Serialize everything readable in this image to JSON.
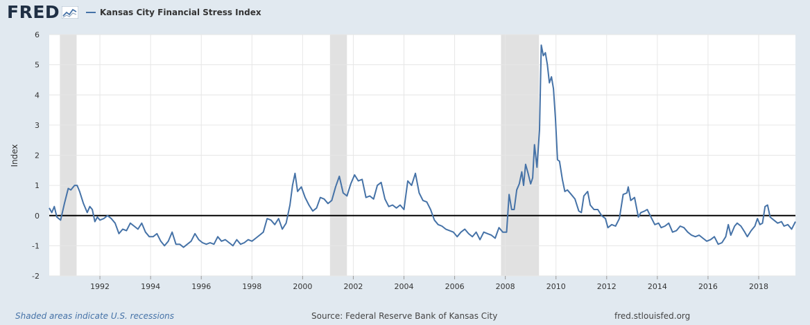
{
  "header": {
    "logo_text": "FRED",
    "logo_icon": "fred-graph-icon",
    "legend_label": "Kansas City Financial Stress Index"
  },
  "footer": {
    "recessions_note": "Shaded areas indicate U.S. recessions",
    "source": "Source: Federal Reserve Bank of Kansas City",
    "site": "fred.stlouisfed.org"
  },
  "colors": {
    "background": "#e1e9f0",
    "plot": "#ffffff",
    "series": "#4572a7",
    "recession": "#e1e1e1",
    "zero_line": "#000000"
  },
  "chart_data": {
    "type": "line",
    "ylabel": "Index",
    "ylim": [
      -2,
      6
    ],
    "yticks": [
      -2,
      -1,
      0,
      1,
      2,
      3,
      4,
      5,
      6
    ],
    "xlim": [
      1990.0,
      2019.45
    ],
    "xticks": [
      1992,
      1994,
      1996,
      1998,
      2000,
      2002,
      2004,
      2006,
      2008,
      2010,
      2012,
      2014,
      2016,
      2018
    ],
    "xtick_labels": [
      "1992",
      "1994",
      "1996",
      "1998",
      "2000",
      "2002",
      "2004",
      "2006",
      "2008",
      "2010",
      "2012",
      "2014",
      "2016",
      "2018"
    ],
    "grid": true,
    "recessions": [
      [
        1990.42,
        1991.08
      ],
      [
        2001.08,
        2001.75
      ],
      [
        2007.83,
        2009.33
      ]
    ],
    "reference_line": 0,
    "series": [
      {
        "name": "Kansas City Financial Stress Index",
        "points": [
          [
            1990.0,
            0.25
          ],
          [
            1990.1,
            0.1
          ],
          [
            1990.2,
            0.3
          ],
          [
            1990.3,
            -0.05
          ],
          [
            1990.45,
            -0.15
          ],
          [
            1990.6,
            0.4
          ],
          [
            1990.75,
            0.9
          ],
          [
            1990.85,
            0.85
          ],
          [
            1991.0,
            1.0
          ],
          [
            1991.1,
            1.0
          ],
          [
            1991.2,
            0.8
          ],
          [
            1991.35,
            0.4
          ],
          [
            1991.5,
            0.1
          ],
          [
            1991.6,
            0.3
          ],
          [
            1991.7,
            0.2
          ],
          [
            1991.8,
            -0.2
          ],
          [
            1991.9,
            -0.05
          ],
          [
            1992.0,
            -0.15
          ],
          [
            1992.15,
            -0.1
          ],
          [
            1992.3,
            0.0
          ],
          [
            1992.45,
            -0.1
          ],
          [
            1992.6,
            -0.25
          ],
          [
            1992.75,
            -0.6
          ],
          [
            1992.9,
            -0.45
          ],
          [
            1993.05,
            -0.5
          ],
          [
            1993.2,
            -0.25
          ],
          [
            1993.35,
            -0.35
          ],
          [
            1993.5,
            -0.45
          ],
          [
            1993.65,
            -0.25
          ],
          [
            1993.8,
            -0.55
          ],
          [
            1993.95,
            -0.7
          ],
          [
            1994.1,
            -0.7
          ],
          [
            1994.25,
            -0.6
          ],
          [
            1994.4,
            -0.85
          ],
          [
            1994.55,
            -1.0
          ],
          [
            1994.7,
            -0.85
          ],
          [
            1994.85,
            -0.55
          ],
          [
            1995.0,
            -0.95
          ],
          [
            1995.15,
            -0.95
          ],
          [
            1995.3,
            -1.05
          ],
          [
            1995.45,
            -0.95
          ],
          [
            1995.6,
            -0.85
          ],
          [
            1995.75,
            -0.6
          ],
          [
            1995.9,
            -0.8
          ],
          [
            1996.05,
            -0.9
          ],
          [
            1996.2,
            -0.95
          ],
          [
            1996.35,
            -0.9
          ],
          [
            1996.5,
            -0.95
          ],
          [
            1996.65,
            -0.7
          ],
          [
            1996.8,
            -0.85
          ],
          [
            1996.95,
            -0.8
          ],
          [
            1997.1,
            -0.9
          ],
          [
            1997.25,
            -1.0
          ],
          [
            1997.4,
            -0.8
          ],
          [
            1997.55,
            -0.95
          ],
          [
            1997.7,
            -0.9
          ],
          [
            1997.85,
            -0.8
          ],
          [
            1998.0,
            -0.85
          ],
          [
            1998.15,
            -0.75
          ],
          [
            1998.3,
            -0.65
          ],
          [
            1998.45,
            -0.55
          ],
          [
            1998.6,
            -0.1
          ],
          [
            1998.75,
            -0.15
          ],
          [
            1998.9,
            -0.3
          ],
          [
            1999.05,
            -0.1
          ],
          [
            1999.2,
            -0.45
          ],
          [
            1999.35,
            -0.25
          ],
          [
            1999.5,
            0.35
          ],
          [
            1999.6,
            1.0
          ],
          [
            1999.7,
            1.4
          ],
          [
            1999.8,
            0.8
          ],
          [
            1999.95,
            0.95
          ],
          [
            2000.1,
            0.6
          ],
          [
            2000.25,
            0.35
          ],
          [
            2000.4,
            0.15
          ],
          [
            2000.55,
            0.25
          ],
          [
            2000.7,
            0.6
          ],
          [
            2000.85,
            0.55
          ],
          [
            2001.0,
            0.4
          ],
          [
            2001.15,
            0.5
          ],
          [
            2001.3,
            0.95
          ],
          [
            2001.45,
            1.3
          ],
          [
            2001.6,
            0.75
          ],
          [
            2001.75,
            0.65
          ],
          [
            2001.9,
            1.05
          ],
          [
            2002.05,
            1.35
          ],
          [
            2002.2,
            1.15
          ],
          [
            2002.35,
            1.2
          ],
          [
            2002.5,
            0.6
          ],
          [
            2002.65,
            0.65
          ],
          [
            2002.8,
            0.55
          ],
          [
            2002.95,
            1.0
          ],
          [
            2003.1,
            1.1
          ],
          [
            2003.25,
            0.55
          ],
          [
            2003.4,
            0.3
          ],
          [
            2003.55,
            0.35
          ],
          [
            2003.7,
            0.25
          ],
          [
            2003.85,
            0.35
          ],
          [
            2004.0,
            0.2
          ],
          [
            2004.15,
            1.15
          ],
          [
            2004.3,
            1.0
          ],
          [
            2004.45,
            1.4
          ],
          [
            2004.6,
            0.75
          ],
          [
            2004.75,
            0.5
          ],
          [
            2004.9,
            0.45
          ],
          [
            2005.05,
            0.2
          ],
          [
            2005.2,
            -0.15
          ],
          [
            2005.35,
            -0.3
          ],
          [
            2005.5,
            -0.35
          ],
          [
            2005.65,
            -0.45
          ],
          [
            2005.8,
            -0.5
          ],
          [
            2005.95,
            -0.55
          ],
          [
            2006.1,
            -0.7
          ],
          [
            2006.25,
            -0.55
          ],
          [
            2006.4,
            -0.45
          ],
          [
            2006.55,
            -0.6
          ],
          [
            2006.7,
            -0.7
          ],
          [
            2006.85,
            -0.55
          ],
          [
            2007.0,
            -0.8
          ],
          [
            2007.15,
            -0.55
          ],
          [
            2007.3,
            -0.6
          ],
          [
            2007.45,
            -0.65
          ],
          [
            2007.6,
            -0.75
          ],
          [
            2007.75,
            -0.4
          ],
          [
            2007.9,
            -0.55
          ],
          [
            2008.05,
            -0.55
          ],
          [
            2008.15,
            0.7
          ],
          [
            2008.25,
            0.2
          ],
          [
            2008.35,
            0.2
          ],
          [
            2008.45,
            0.85
          ],
          [
            2008.55,
            1.05
          ],
          [
            2008.65,
            1.45
          ],
          [
            2008.72,
            1.0
          ],
          [
            2008.8,
            1.7
          ],
          [
            2008.9,
            1.4
          ],
          [
            2009.0,
            1.05
          ],
          [
            2009.08,
            1.25
          ],
          [
            2009.15,
            2.35
          ],
          [
            2009.25,
            1.6
          ],
          [
            2009.35,
            2.85
          ],
          [
            2009.42,
            5.65
          ],
          [
            2009.5,
            5.3
          ],
          [
            2009.58,
            5.4
          ],
          [
            2009.66,
            5.0
          ],
          [
            2009.74,
            4.4
          ],
          [
            2009.82,
            4.6
          ],
          [
            2009.9,
            4.2
          ],
          [
            2009.98,
            3.2
          ],
          [
            2010.06,
            1.85
          ],
          [
            2010.14,
            1.8
          ],
          [
            2010.25,
            1.2
          ],
          [
            2010.35,
            0.8
          ],
          [
            2010.45,
            0.85
          ],
          [
            2010.6,
            0.7
          ],
          [
            2010.75,
            0.55
          ],
          [
            2010.9,
            0.15
          ],
          [
            2011.0,
            0.1
          ],
          [
            2011.1,
            0.65
          ],
          [
            2011.25,
            0.8
          ],
          [
            2011.35,
            0.35
          ],
          [
            2011.5,
            0.2
          ],
          [
            2011.65,
            0.2
          ],
          [
            2011.8,
            0.0
          ],
          [
            2011.95,
            -0.1
          ],
          [
            2012.05,
            -0.4
          ],
          [
            2012.2,
            -0.3
          ],
          [
            2012.35,
            -0.35
          ],
          [
            2012.5,
            -0.1
          ],
          [
            2012.65,
            0.7
          ],
          [
            2012.8,
            0.75
          ],
          [
            2012.85,
            0.95
          ],
          [
            2012.95,
            0.5
          ],
          [
            2013.1,
            0.6
          ],
          [
            2013.25,
            -0.05
          ],
          [
            2013.35,
            0.1
          ],
          [
            2013.5,
            0.15
          ],
          [
            2013.6,
            0.2
          ],
          [
            2013.75,
            -0.05
          ],
          [
            2013.9,
            -0.3
          ],
          [
            2014.05,
            -0.25
          ],
          [
            2014.15,
            -0.4
          ],
          [
            2014.3,
            -0.35
          ],
          [
            2014.45,
            -0.25
          ],
          [
            2014.6,
            -0.55
          ],
          [
            2014.75,
            -0.5
          ],
          [
            2014.9,
            -0.35
          ],
          [
            2015.05,
            -0.4
          ],
          [
            2015.2,
            -0.55
          ],
          [
            2015.35,
            -0.65
          ],
          [
            2015.5,
            -0.7
          ],
          [
            2015.65,
            -0.65
          ],
          [
            2015.8,
            -0.75
          ],
          [
            2015.95,
            -0.85
          ],
          [
            2016.1,
            -0.8
          ],
          [
            2016.25,
            -0.7
          ],
          [
            2016.4,
            -0.95
          ],
          [
            2016.55,
            -0.9
          ],
          [
            2016.7,
            -0.7
          ],
          [
            2016.8,
            -0.3
          ],
          [
            2016.9,
            -0.65
          ],
          [
            2017.05,
            -0.35
          ],
          [
            2017.15,
            -0.25
          ],
          [
            2017.3,
            -0.35
          ],
          [
            2017.45,
            -0.55
          ],
          [
            2017.55,
            -0.7
          ],
          [
            2017.7,
            -0.5
          ],
          [
            2017.85,
            -0.35
          ],
          [
            2017.95,
            -0.1
          ],
          [
            2018.05,
            -0.3
          ],
          [
            2018.15,
            -0.25
          ],
          [
            2018.25,
            0.3
          ],
          [
            2018.35,
            0.35
          ],
          [
            2018.45,
            -0.05
          ],
          [
            2018.6,
            -0.15
          ],
          [
            2018.75,
            -0.25
          ],
          [
            2018.9,
            -0.2
          ],
          [
            2019.0,
            -0.35
          ],
          [
            2019.15,
            -0.3
          ],
          [
            2019.3,
            -0.45
          ],
          [
            2019.45,
            -0.2
          ]
        ]
      }
    ]
  }
}
